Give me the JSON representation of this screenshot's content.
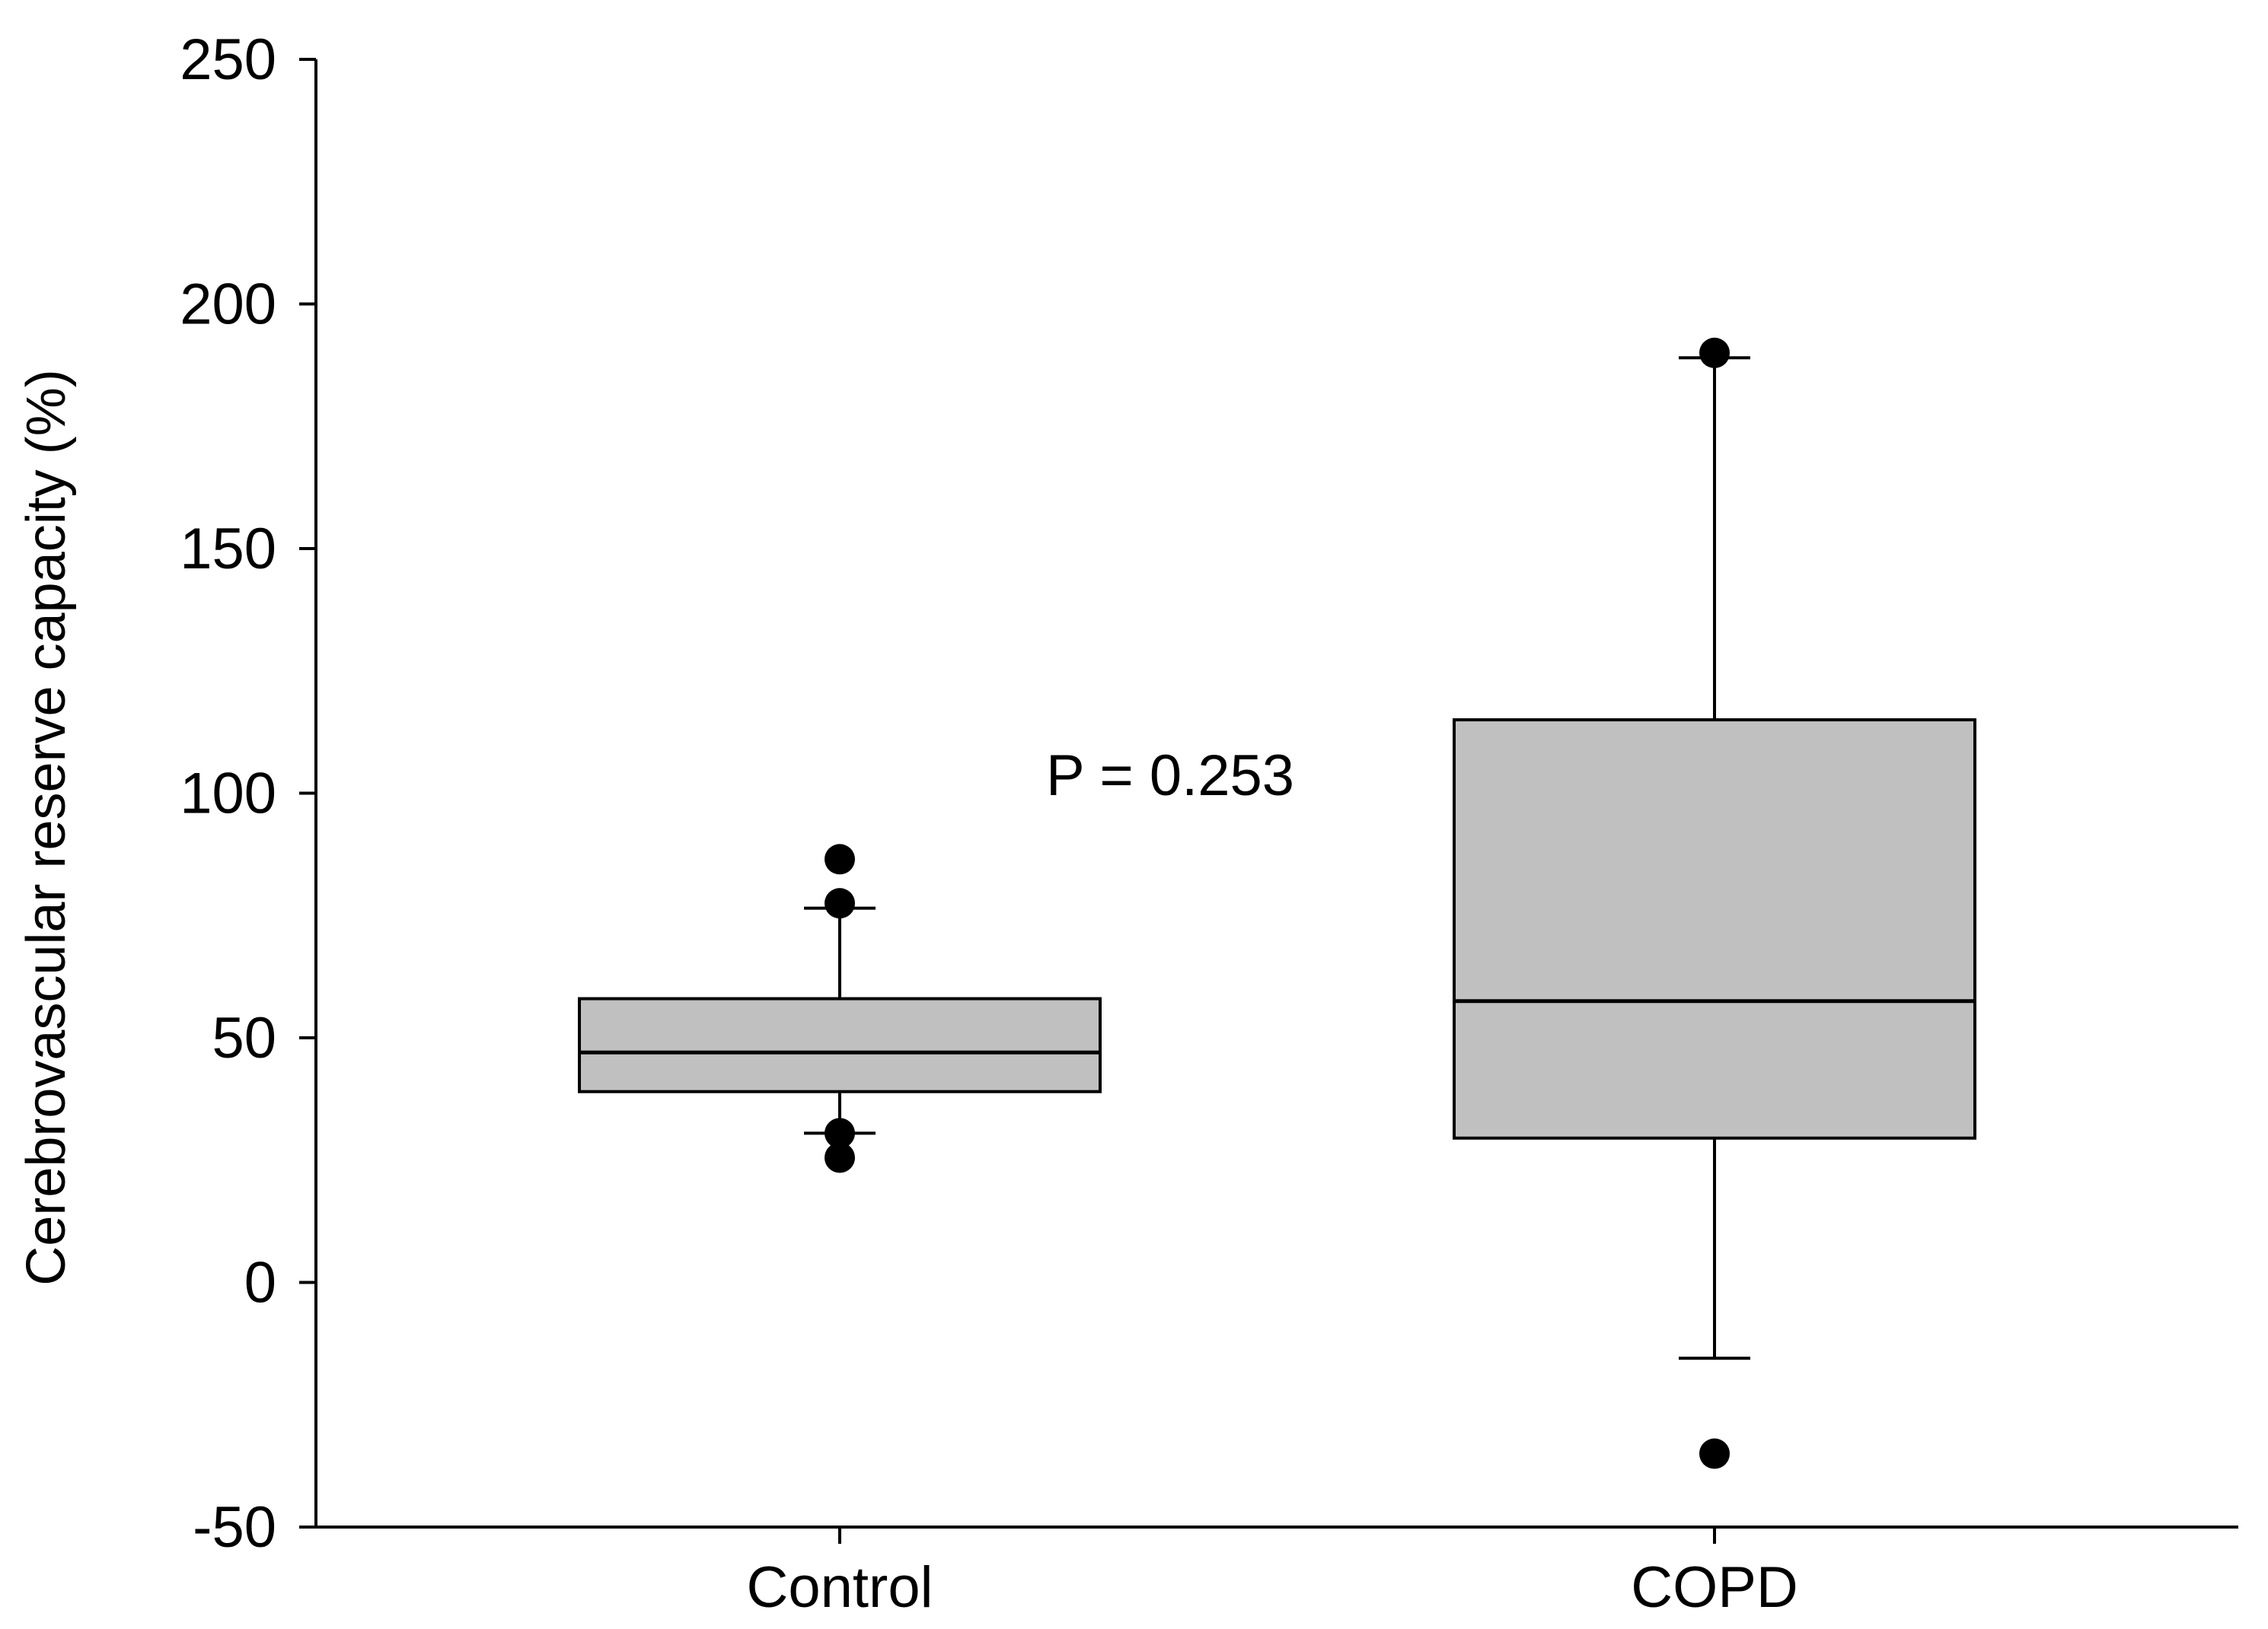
{
  "chart_data": {
    "type": "boxplot",
    "title": "",
    "xlabel": "",
    "ylabel": "Cerebrovascular reserve capacity (%)",
    "ylim": [
      -50,
      250
    ],
    "yticks": [
      -50,
      0,
      50,
      100,
      150,
      200,
      250
    ],
    "categories": [
      "Control",
      "COPD"
    ],
    "boxes": [
      {
        "category": "Control",
        "whisker_low": 30.5,
        "q1": 39,
        "median": 47,
        "q3": 58,
        "whisker_high": 76.5,
        "outliers": [
          86.5,
          77.5,
          30.5,
          25.5
        ]
      },
      {
        "category": "COPD",
        "whisker_low": -15.5,
        "q1": 29.5,
        "median": 57.5,
        "q3": 115,
        "whisker_high": 189,
        "outliers": [
          190,
          -35
        ]
      }
    ],
    "annotation": "P = 0.253",
    "grid": false,
    "box_color": "#c0c0c0",
    "line_color": "#000000"
  }
}
